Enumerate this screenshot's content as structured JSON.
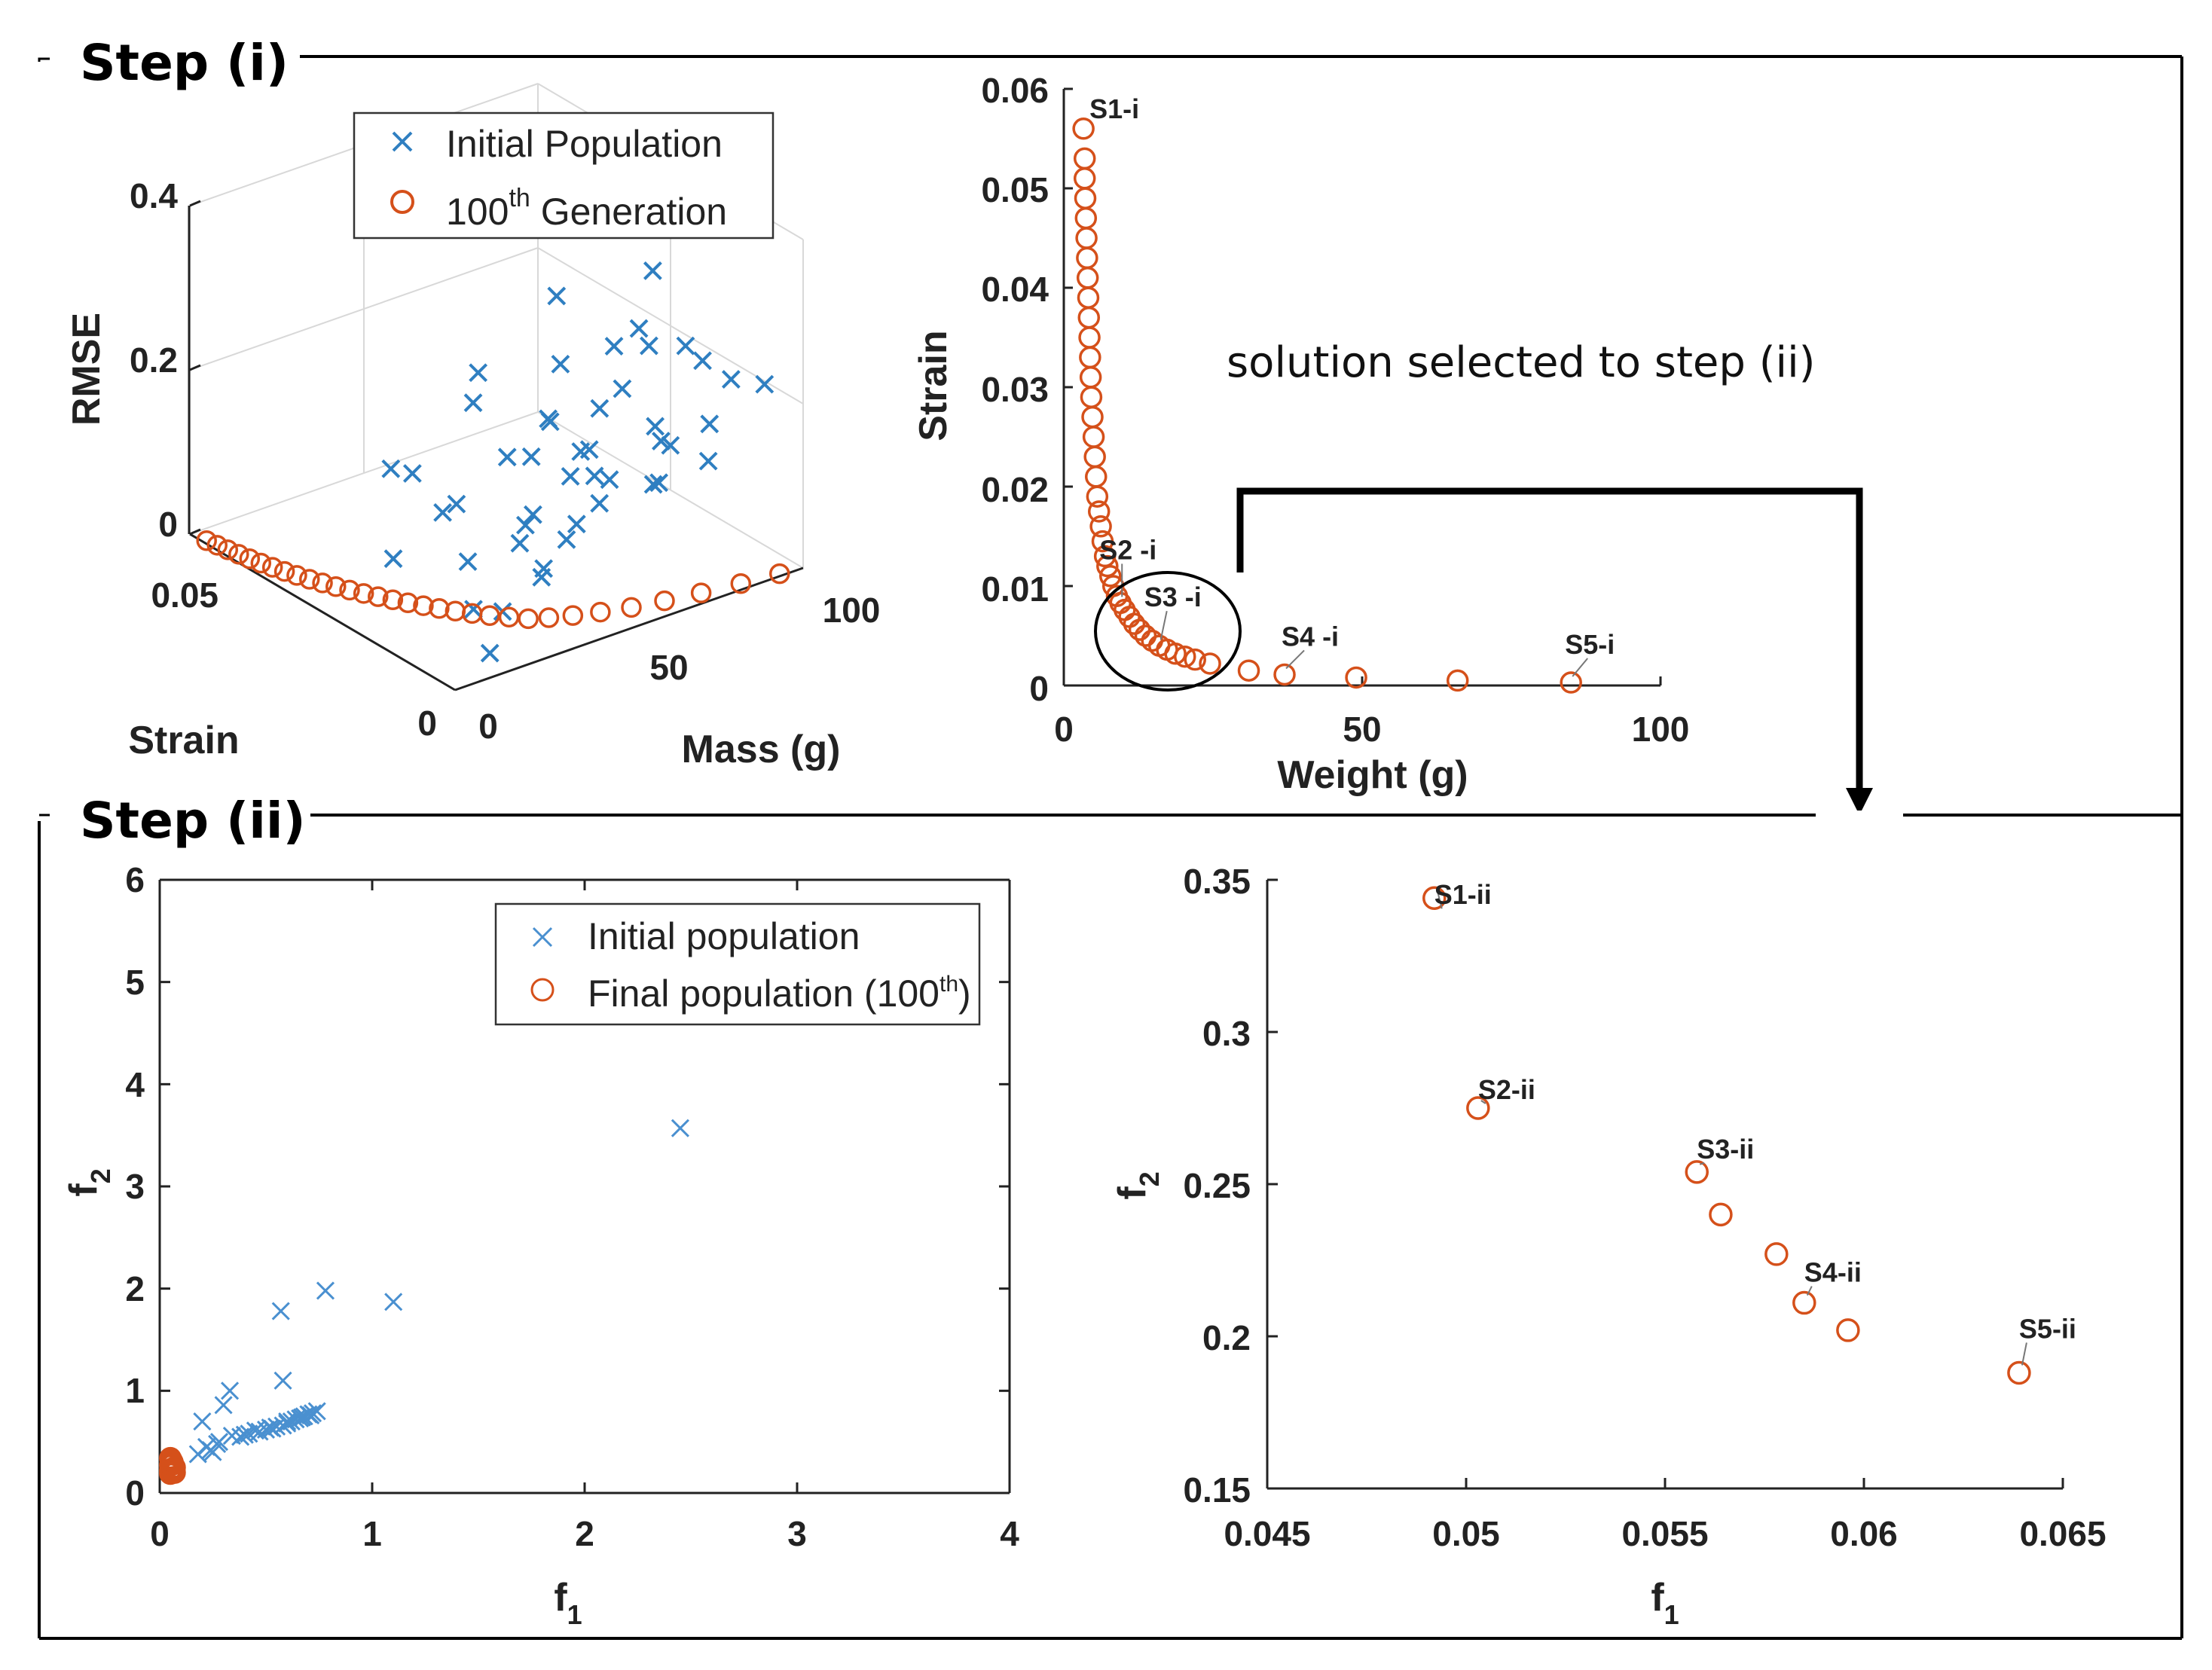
{
  "page": {
    "step_i_label": "Step (i)",
    "step_ii_label": "Step (ii)",
    "selection_note": "solution selected to step (ii)"
  },
  "colors": {
    "blue": "#2f7fc1",
    "orange": "#d5501a",
    "axis": "#222222"
  },
  "chart_data": [
    {
      "id": "plot3d",
      "type": "scatter",
      "title": "",
      "xlabel": "Mass (g)",
      "ylabel": "Strain",
      "zlabel": "RMSE",
      "xlim": [
        0,
        100
      ],
      "ylim": [
        0,
        0.06
      ],
      "zlim": [
        0,
        0.4
      ],
      "x_ticks": [
        "0",
        "50",
        "100"
      ],
      "y_ticks": [
        "0",
        "0.05"
      ],
      "z_ticks": [
        "0",
        "0.2",
        "0.4"
      ],
      "legend": [
        "Initial Population",
        "100",
        "th",
        " Generation"
      ],
      "series": [
        {
          "name": "Initial Population",
          "marker": "x",
          "x": [
            10,
            20,
            28,
            35,
            40,
            46,
            52,
            58,
            63,
            70,
            76,
            82,
            88,
            94,
            18,
            24,
            30,
            38,
            44,
            50,
            56,
            62,
            68,
            74,
            80,
            86,
            92,
            14,
            22,
            32,
            42,
            48,
            54,
            60,
            66,
            72,
            78,
            84,
            90,
            26,
            36,
            46,
            56,
            66,
            76,
            86,
            96
          ],
          "y": [
            0.0,
            0.005,
            0.002,
            0.008,
            0.004,
            0.011,
            0.006,
            0.013,
            0.003,
            0.009,
            0.015,
            0.007,
            0.012,
            0.004,
            0.01,
            0.016,
            0.006,
            0.014,
            0.02,
            0.009,
            0.018,
            0.011,
            0.022,
            0.013,
            0.007,
            0.019,
            0.01,
            0.025,
            0.017,
            0.028,
            0.012,
            0.026,
            0.021,
            0.03,
            0.016,
            0.024,
            0.033,
            0.014,
            0.027,
            0.035,
            0.038,
            0.031,
            0.04,
            0.029,
            0.036,
            0.023,
            0.034
          ],
          "z": [
            0.03,
            0.05,
            0.1,
            0.06,
            0.13,
            0.08,
            0.16,
            0.1,
            0.2,
            0.12,
            0.09,
            0.18,
            0.11,
            0.22,
            0.04,
            0.07,
            0.15,
            0.1,
            0.05,
            0.19,
            0.12,
            0.24,
            0.09,
            0.17,
            0.26,
            0.11,
            0.21,
            0.06,
            0.14,
            0.08,
            0.23,
            0.13,
            0.18,
            0.1,
            0.27,
            0.16,
            0.07,
            0.25,
            0.2,
            0.12,
            0.09,
            0.22,
            0.14,
            0.29,
            0.17,
            0.31,
            0.19
          ]
        },
        {
          "name": "100th Generation",
          "marker": "o",
          "x": [
            1,
            1.5,
            2,
            2.6,
            3.2,
            3.9,
            4.7,
            5.6,
            6.6,
            7.7,
            8.9,
            10.2,
            11.6,
            13.1,
            14.7,
            16.4,
            18.2,
            20.1,
            22.1,
            24.2,
            26.5,
            29,
            32,
            35,
            39,
            44,
            50,
            57,
            65,
            74,
            84,
            94
          ],
          "y": [
            0.057,
            0.055,
            0.053,
            0.051,
            0.049,
            0.047,
            0.045,
            0.043,
            0.041,
            0.039,
            0.037,
            0.035,
            0.033,
            0.031,
            0.029,
            0.027,
            0.025,
            0.023,
            0.021,
            0.019,
            0.017,
            0.015,
            0.013,
            0.011,
            0.0095,
            0.008,
            0.0065,
            0.005,
            0.0038,
            0.0026,
            0.0015,
            0.0006
          ],
          "z": [
            0,
            0,
            0,
            0,
            0,
            0,
            0,
            0,
            0,
            0,
            0,
            0,
            0,
            0,
            0,
            0,
            0,
            0,
            0,
            0,
            0,
            0,
            0,
            0,
            0,
            0,
            0,
            0,
            0,
            0,
            0,
            0
          ]
        }
      ]
    },
    {
      "id": "pareto_i",
      "type": "scatter",
      "title": "",
      "xlabel": "Weight (g)",
      "ylabel": "Strain",
      "xlim": [
        0,
        100
      ],
      "ylim": [
        0,
        0.06
      ],
      "x_ticks": [
        "0",
        "50",
        "100"
      ],
      "y_ticks": [
        "0",
        "0.01",
        "0.02",
        "0.03",
        "0.04",
        "0.05",
        "0.06"
      ],
      "x": [
        3.3,
        3.5,
        3.5,
        3.6,
        3.7,
        3.8,
        3.9,
        4.0,
        4.1,
        4.2,
        4.3,
        4.4,
        4.5,
        4.6,
        4.8,
        5.0,
        5.2,
        5.4,
        5.6,
        5.9,
        6.2,
        6.5,
        6.9,
        7.3,
        7.8,
        8.3,
        8.9,
        9.5,
        10.2,
        11.0,
        11.8,
        12.7,
        13.7,
        14.8,
        16.0,
        17.3,
        18.7,
        20.3,
        22.0,
        24.5,
        31,
        37,
        49,
        66,
        85
      ],
      "y": [
        0.056,
        0.053,
        0.051,
        0.049,
        0.047,
        0.045,
        0.043,
        0.041,
        0.039,
        0.037,
        0.035,
        0.033,
        0.031,
        0.029,
        0.027,
        0.025,
        0.023,
        0.021,
        0.019,
        0.0175,
        0.016,
        0.0145,
        0.013,
        0.012,
        0.011,
        0.01,
        0.009,
        0.0083,
        0.0076,
        0.0069,
        0.0062,
        0.0056,
        0.005,
        0.0045,
        0.004,
        0.0036,
        0.0032,
        0.0029,
        0.0026,
        0.0022,
        0.0015,
        0.0011,
        0.0008,
        0.0005,
        0.0003
      ],
      "annotations": [
        {
          "label": "S1-i",
          "x": 3.3,
          "y": 0.056
        },
        {
          "label": "S2 -i",
          "x": 9.5,
          "y": 0.0083
        },
        {
          "label": "S3 -i",
          "x": 16.0,
          "y": 0.004
        },
        {
          "label": "S4 -i",
          "x": 37,
          "y": 0.0011
        },
        {
          "label": "S5-i",
          "x": 85,
          "y": 0.0003
        }
      ]
    },
    {
      "id": "scatter_ii",
      "type": "scatter",
      "title": "",
      "xlabel": "f1",
      "ylabel": "f2",
      "xlim": [
        0,
        4
      ],
      "ylim": [
        0,
        6
      ],
      "x_ticks": [
        "0",
        "1",
        "2",
        "3",
        "4"
      ],
      "y_ticks": [
        "0",
        "1",
        "2",
        "3",
        "4",
        "5",
        "6"
      ],
      "legend": [
        "Initial population",
        "Final population (100",
        "th",
        ")"
      ],
      "series": [
        {
          "name": "Initial population",
          "marker": "x",
          "x": [
            2.45,
            0.78,
            1.1,
            0.57,
            0.58,
            0.33,
            0.3,
            0.2,
            0.22,
            0.24,
            0.28,
            0.38,
            0.42,
            0.47,
            0.5,
            0.53,
            0.55,
            0.58,
            0.6,
            0.62,
            0.64,
            0.66,
            0.68,
            0.7,
            0.72,
            0.74,
            0.45,
            0.52,
            0.6,
            0.67,
            0.71,
            0.27,
            0.34,
            0.18,
            0.25,
            0.4
          ],
          "y": [
            3.57,
            1.98,
            1.87,
            1.78,
            1.1,
            1.0,
            0.86,
            0.7,
            0.45,
            0.42,
            0.5,
            0.55,
            0.58,
            0.6,
            0.62,
            0.63,
            0.65,
            0.66,
            0.68,
            0.7,
            0.72,
            0.73,
            0.75,
            0.77,
            0.78,
            0.8,
            0.61,
            0.64,
            0.7,
            0.74,
            0.76,
            0.48,
            0.56,
            0.38,
            0.4,
            0.57
          ]
        },
        {
          "name": "Final population (100th)",
          "marker": "o",
          "x": [
            0.05,
            0.06,
            0.05,
            0.07,
            0.06,
            0.05,
            0.06,
            0.07,
            0.05,
            0.06,
            0.065,
            0.055
          ],
          "y": [
            0.34,
            0.3,
            0.27,
            0.25,
            0.24,
            0.22,
            0.21,
            0.2,
            0.19,
            0.28,
            0.23,
            0.32
          ]
        }
      ]
    },
    {
      "id": "pareto_ii",
      "type": "scatter",
      "title": "",
      "xlabel": "f1",
      "ylabel": "f2",
      "xlim": [
        0.045,
        0.065
      ],
      "ylim": [
        0.15,
        0.35
      ],
      "x_ticks": [
        "0.045",
        "0.05",
        "0.055",
        "0.06",
        "0.065"
      ],
      "y_ticks": [
        "0.15",
        "0.2",
        "0.25",
        "0.3",
        "0.35"
      ],
      "x": [
        0.0492,
        0.0503,
        0.0558,
        0.0564,
        0.0578,
        0.0585,
        0.0596,
        0.0639
      ],
      "y": [
        0.344,
        0.275,
        0.254,
        0.24,
        0.227,
        0.211,
        0.202,
        0.188
      ],
      "annotations": [
        {
          "label": "S1-ii",
          "x": 0.0492,
          "y": 0.344
        },
        {
          "label": "S2-ii",
          "x": 0.0503,
          "y": 0.275
        },
        {
          "label": "S3-ii",
          "x": 0.0558,
          "y": 0.254
        },
        {
          "label": "S4-ii",
          "x": 0.0585,
          "y": 0.211
        },
        {
          "label": "S5-ii",
          "x": 0.0639,
          "y": 0.188
        }
      ]
    }
  ]
}
